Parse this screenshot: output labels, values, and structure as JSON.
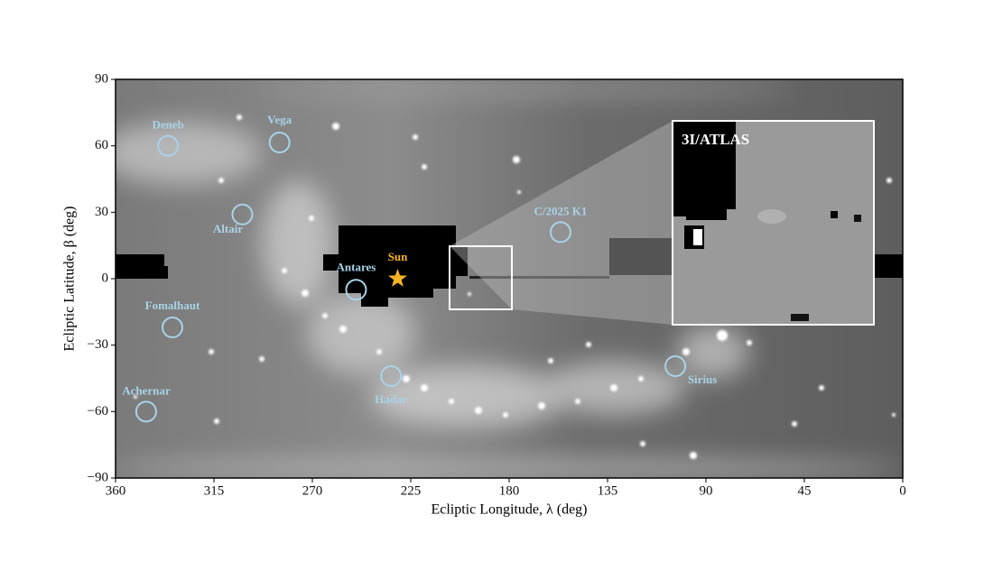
{
  "chart_data": {
    "type": "scatter",
    "x_label": "Ecliptic Longitude, λ (deg)",
    "y_label": "Ecliptic Latitude, β (deg)",
    "xlim": [
      360,
      0
    ],
    "ylim": [
      -90,
      90
    ],
    "xticks": [
      360,
      315,
      270,
      225,
      180,
      135,
      90,
      45,
      0
    ],
    "yticks": [
      {
        "value": -90,
        "label": "−90"
      },
      {
        "value": -60,
        "label": "−60"
      },
      {
        "value": -30,
        "label": "−30"
      },
      0,
      30,
      60,
      90
    ],
    "marker_color": "#a9d3e6",
    "points": [
      {
        "label": "Deneb",
        "x": 336,
        "y": 60
      },
      {
        "label": "Vega",
        "x": 285,
        "y": 61.5
      },
      {
        "label": "Altair",
        "x": 302,
        "y": 29
      },
      {
        "label": "Antares",
        "x": 250,
        "y": -5
      },
      {
        "label": "Fomalhaut",
        "x": 334,
        "y": -22
      },
      {
        "label": "Achernar",
        "x": 346,
        "y": -60
      },
      {
        "label": "Hadar",
        "x": 234,
        "y": -44
      },
      {
        "label": "Sirius",
        "x": 104,
        "y": -39.5
      },
      {
        "label": "C/2025 K1",
        "x": 156.5,
        "y": 21
      }
    ],
    "sun": {
      "label": "Sun",
      "x": 231,
      "y": 0,
      "color": "#f5b324"
    },
    "inset_label": "3I/ATLAS"
  }
}
